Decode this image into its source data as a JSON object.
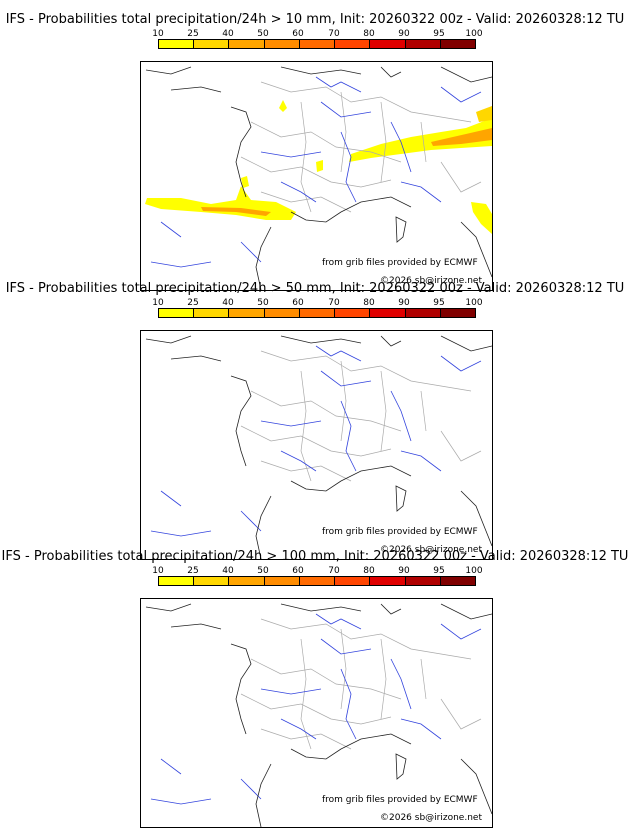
{
  "legend": {
    "ticks": [
      "10",
      "25",
      "40",
      "50",
      "60",
      "70",
      "80",
      "90",
      "95",
      "100"
    ],
    "colors": [
      "#ffff00",
      "#ffd700",
      "#ffa500",
      "#ff8c00",
      "#ff6a00",
      "#ff4500",
      "#e00000",
      "#b00000",
      "#800000",
      "#500000"
    ]
  },
  "panels": [
    {
      "title": "IFS - Probabilities total precipitation/24h > 10 mm, Init: 20260322 00z - Valid: 20260328:12 TU",
      "credit": "from grib files provided by ECMWF",
      "copyright": "©2026 sb@irizone.net"
    },
    {
      "title": "IFS - Probabilities total precipitation/24h > 50 mm, Init: 20260322 00z - Valid: 20260328:12 TU",
      "credit": "from grib files provided by ECMWF",
      "copyright": "©2026 sb@irizone.net"
    },
    {
      "title": "IFS - Probabilities total precipitation/24h > 100 mm, Init: 20260322 00z - Valid: 20260328:12 TU",
      "credit": "from grib files provided by ECMWF",
      "copyright": "©2026 sb@irizone.net"
    }
  ]
}
